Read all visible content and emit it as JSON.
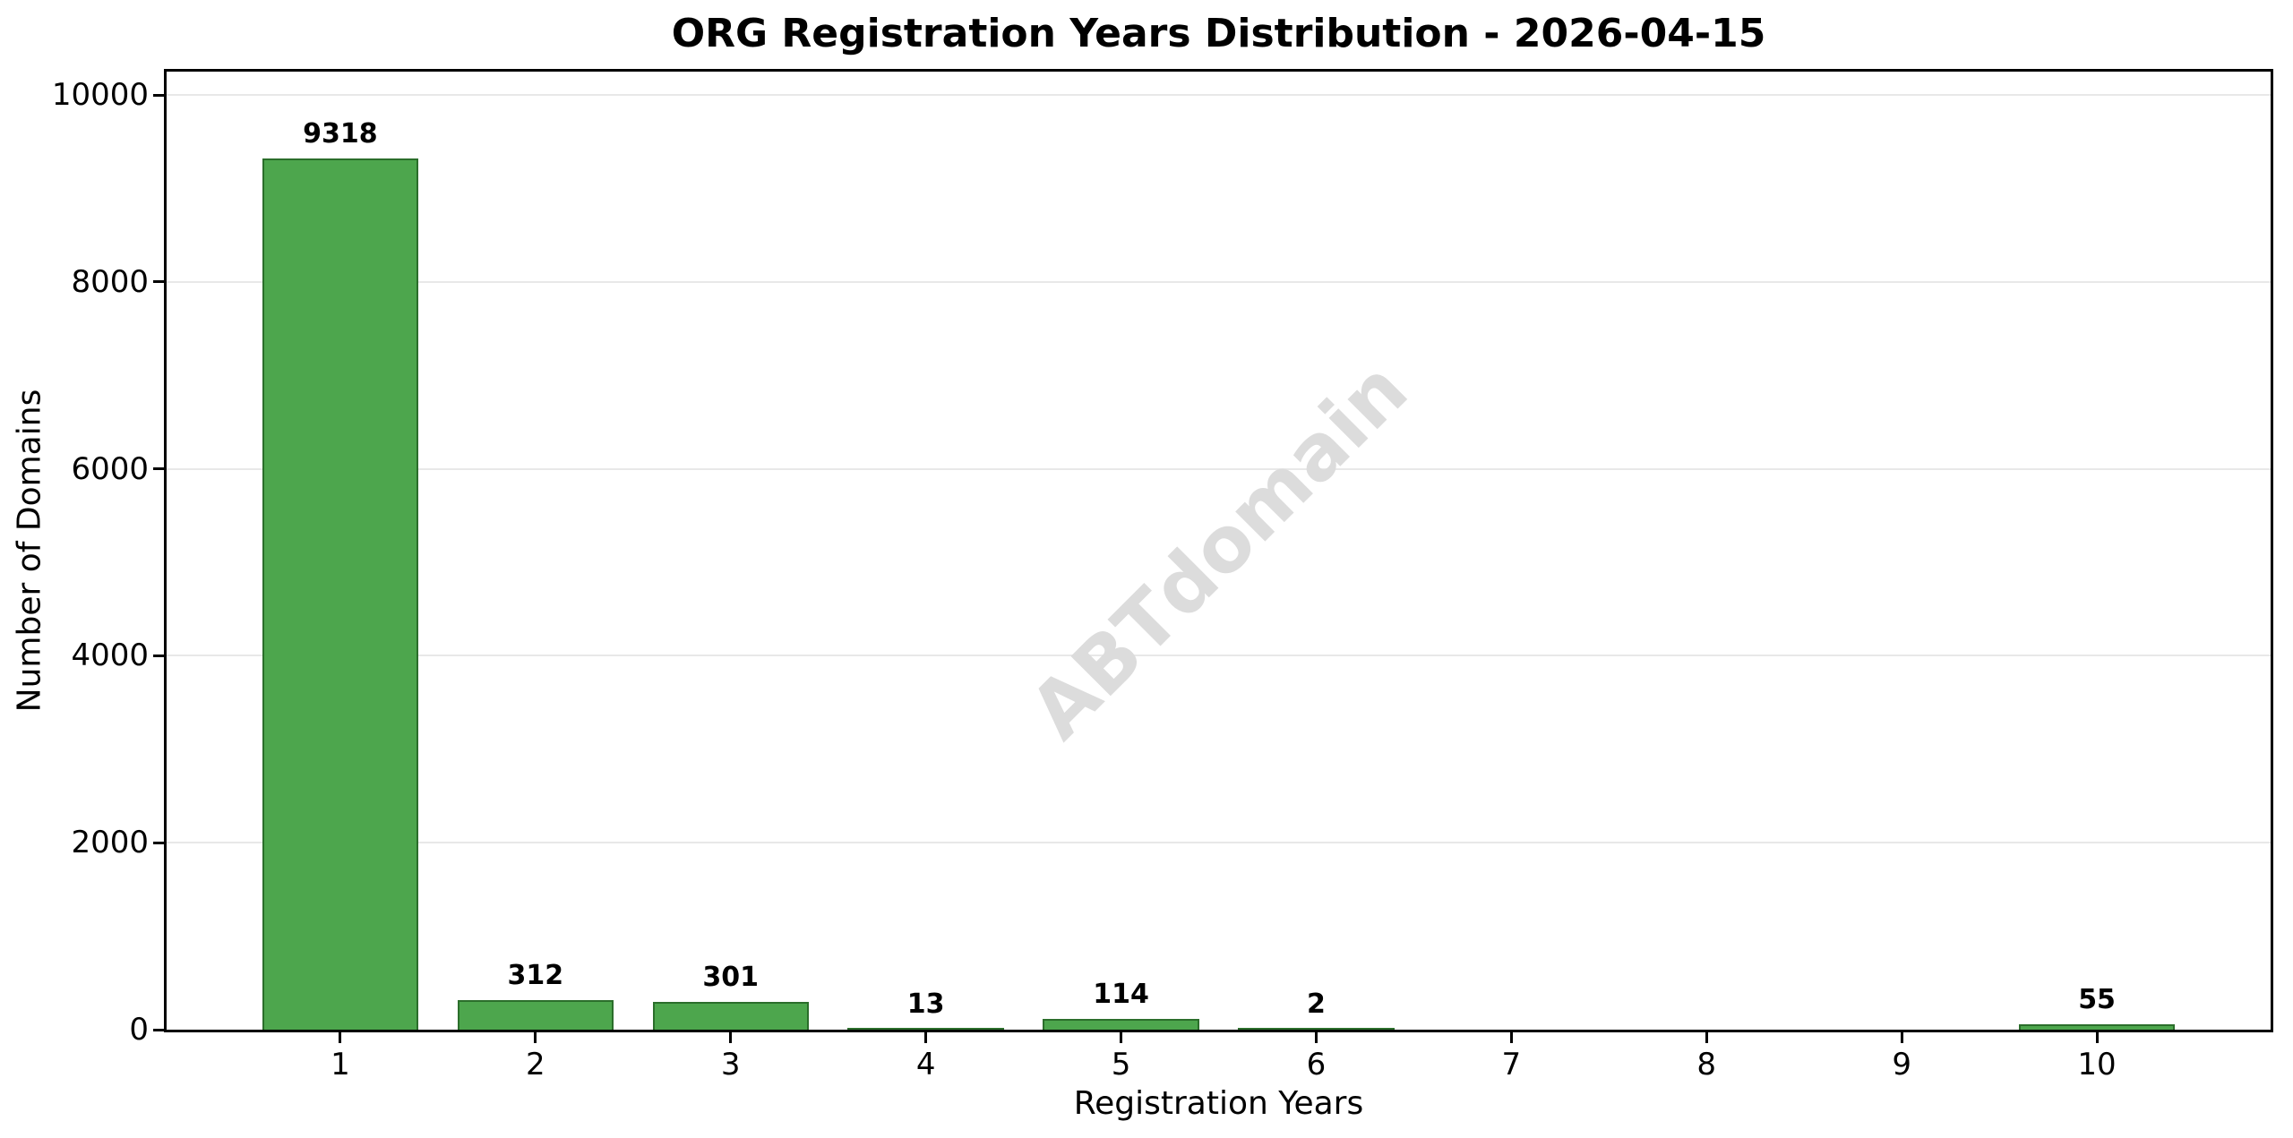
{
  "chart_data": {
    "type": "bar",
    "title": "ORG Registration Years Distribution - 2026-04-15",
    "xlabel": "Registration Years",
    "ylabel": "Number of Domains",
    "categories": [
      "1",
      "2",
      "3",
      "4",
      "5",
      "6",
      "7",
      "8",
      "9",
      "10"
    ],
    "values": [
      9318,
      312,
      301,
      13,
      114,
      2,
      0,
      0,
      0,
      55
    ],
    "bar_labels": [
      "9318",
      "312",
      "301",
      "13",
      "114",
      "2",
      "",
      "",
      "",
      "55"
    ],
    "x_positions": [
      1,
      2,
      3,
      4,
      5,
      6,
      7,
      8,
      9,
      10
    ],
    "xlim": [
      0.11,
      10.89
    ],
    "ylim": [
      0,
      10250
    ],
    "yticks": [
      0,
      2000,
      4000,
      6000,
      8000,
      10000
    ],
    "ytick_labels": [
      "0",
      "2000",
      "4000",
      "6000",
      "8000",
      "10000"
    ],
    "bar_width_units": 0.8,
    "grid": "horizontal-on",
    "legend": "none",
    "watermark": "ABTdomain",
    "colors": {
      "bar_fill": "#4DA64D",
      "bar_edge": "#2B6E2B",
      "gridline": "#e8e8e8",
      "frame": "#000000",
      "text": "#000000",
      "watermark": "#dcdcdc",
      "background": "#ffffff"
    }
  }
}
